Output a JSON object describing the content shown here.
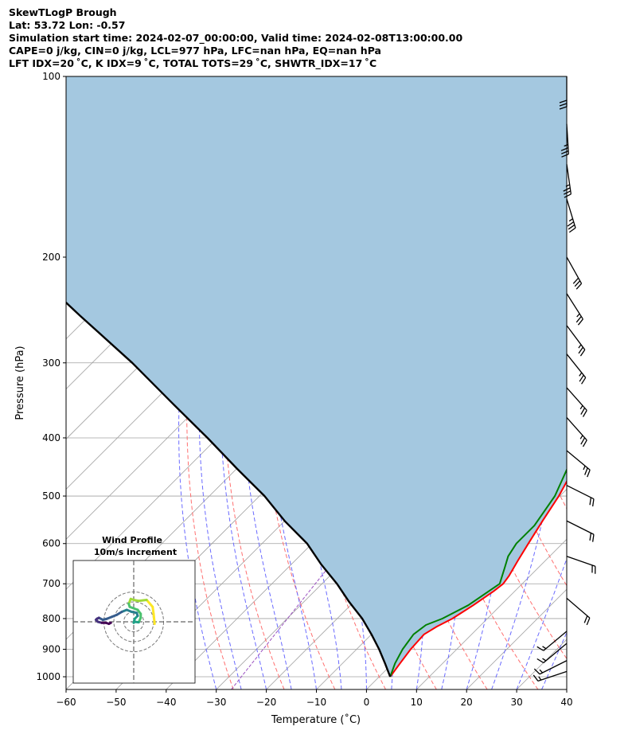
{
  "header": {
    "line1": "SkewTLogP Brough",
    "line2": "Lat: 53.72   Lon: -0.57",
    "line3": "Simulation start time: 2024-02-07_00:00:00, Valid time: 2024-02-08T13:00:00.00",
    "line4": "CAPE=0 j/kg, CIN=0 j/kg, LCL=977 hPa, LFC=nan hPa, EQ=nan hPa",
    "line5": "LFT IDX=20 ˚C, K IDX=9 ˚C, TOTAL TOTS=29 ˚C, SHWTR_IDX=17 ˚C"
  },
  "colors": {
    "temperature": "#ff0000",
    "dewpoint": "#008000",
    "parcel": "#000000",
    "cape_fill": "#a4c8e0",
    "dry_adiabat": "#ff6f6f",
    "moist_adiabat": "#6a6aff",
    "isotherm": "#a0a0a0",
    "mixing_ratio": "#9a50c0"
  },
  "chart_data": {
    "type": "line",
    "x": [
      -60,
      -50,
      -40,
      -30,
      -20,
      -10,
      0,
      10,
      20,
      30,
      40
    ],
    "xlabel": "Temperature (˚C)",
    "ylabel": "Pressure (hPa)",
    "xlim": [
      -60,
      40
    ],
    "ylim": [
      1050,
      100
    ],
    "y_scale": "log",
    "y_ticks": [
      1000,
      900,
      800,
      700,
      600,
      500,
      400,
      300,
      200,
      100
    ],
    "skew": "log-p skew-T",
    "grid": true,
    "series": [
      {
        "name": "temperature",
        "points": [
          [
            2.2,
            1000
          ],
          [
            1.5,
            950
          ],
          [
            0.8,
            900
          ],
          [
            0.5,
            850
          ],
          [
            1.5,
            825
          ],
          [
            3,
            800
          ],
          [
            4.5,
            760
          ],
          [
            5.8,
            720
          ],
          [
            6.2,
            700
          ],
          [
            5.8,
            680
          ],
          [
            4.5,
            640
          ],
          [
            3.2,
            600
          ],
          [
            1.5,
            550
          ],
          [
            -0.2,
            500
          ],
          [
            -2.7,
            450
          ],
          [
            -6,
            400
          ],
          [
            -10,
            350
          ],
          [
            -15,
            300
          ],
          [
            -20,
            260
          ],
          [
            -23.5,
            230
          ],
          [
            -24,
            220
          ],
          [
            -23.5,
            210
          ],
          [
            -23,
            200
          ],
          [
            -22.5,
            190
          ],
          [
            -21.5,
            180
          ],
          [
            -20.2,
            170
          ],
          [
            -19,
            160
          ],
          [
            -17.5,
            150
          ],
          [
            -15.5,
            140
          ],
          [
            -13.5,
            130
          ],
          [
            -11.5,
            120
          ],
          [
            -9.5,
            110
          ],
          [
            -8,
            100
          ]
        ]
      },
      {
        "name": "dewpoint",
        "points": [
          [
            2.2,
            1000
          ],
          [
            0.5,
            950
          ],
          [
            -0.8,
            900
          ],
          [
            -1.6,
            850
          ],
          [
            -1,
            820
          ],
          [
            1,
            800
          ],
          [
            3.5,
            760
          ],
          [
            5.5,
            700
          ],
          [
            3.4,
            660
          ],
          [
            1.7,
            630
          ],
          [
            0.8,
            600
          ],
          [
            0.8,
            560
          ],
          [
            -1,
            500
          ],
          [
            -4,
            450
          ],
          [
            -7.5,
            400
          ],
          [
            -12,
            350
          ],
          [
            -18,
            310
          ],
          [
            -19.7,
            300
          ],
          [
            -22,
            280
          ],
          [
            -24.5,
            260
          ],
          [
            -27.5,
            235
          ],
          [
            -29,
            220
          ],
          [
            -28.5,
            210
          ],
          [
            -27,
            200
          ],
          [
            -24,
            180
          ],
          [
            -23.5,
            160
          ],
          [
            -23,
            150
          ],
          [
            -22.5,
            140
          ],
          [
            -17,
            130
          ],
          [
            -13,
            120
          ],
          [
            -10,
            110
          ],
          [
            -7.5,
            100
          ]
        ]
      },
      {
        "name": "parcel",
        "points": [
          [
            2.2,
            1000
          ],
          [
            -1.5,
            950
          ],
          [
            -5.5,
            900
          ],
          [
            -10,
            850
          ],
          [
            -15,
            800
          ],
          [
            -21,
            750
          ],
          [
            -27,
            700
          ],
          [
            -34,
            650
          ],
          [
            -41,
            600
          ],
          [
            -50,
            550
          ],
          [
            -59,
            500
          ],
          [
            -70,
            450
          ],
          [
            -82,
            400
          ],
          [
            -96,
            350
          ],
          [
            -112,
            300
          ],
          [
            -132,
            250
          ],
          [
            -156,
            200
          ],
          [
            -175,
            170
          ],
          [
            -198,
            140
          ],
          [
            -214,
            120
          ],
          [
            -236,
            100
          ]
        ]
      }
    ]
  },
  "inset": {
    "title": "Wind Profile",
    "subtitle": "10m/s increment",
    "points": [
      [
        21,
        -2
      ],
      [
        20,
        8
      ],
      [
        19,
        15
      ],
      [
        13,
        22
      ],
      [
        5,
        21
      ],
      [
        0,
        22
      ],
      [
        -3,
        23
      ],
      [
        -5,
        18
      ],
      [
        -4,
        15
      ],
      [
        4,
        12
      ],
      [
        7,
        8
      ],
      [
        7,
        4
      ],
      [
        5,
        -0.5
      ],
      [
        1,
        0
      ],
      [
        0,
        -1
      ],
      [
        1,
        3
      ],
      [
        4,
        6
      ],
      [
        3,
        9
      ],
      [
        -2,
        10
      ],
      [
        -7,
        12
      ],
      [
        -12,
        10
      ],
      [
        -17,
        7
      ],
      [
        -22,
        5
      ],
      [
        -27,
        3
      ],
      [
        -31,
        2
      ],
      [
        -35,
        4
      ],
      [
        -37,
        3
      ],
      [
        -38,
        2
      ],
      [
        -36,
        0
      ],
      [
        -32,
        -1
      ],
      [
        -28,
        -1
      ],
      [
        -25,
        -2
      ],
      [
        -23,
        -1
      ]
    ]
  },
  "wind_barbs": [
    {
      "p": 100,
      "u": 0,
      "v": 30
    },
    {
      "p": 120,
      "u": -2,
      "v": 33
    },
    {
      "p": 140,
      "u": -5,
      "v": 35
    },
    {
      "p": 160,
      "u": -10,
      "v": 33
    },
    {
      "p": 200,
      "u": -14,
      "v": 25
    },
    {
      "p": 230,
      "u": -14,
      "v": 22
    },
    {
      "p": 260,
      "u": -15,
      "v": 20
    },
    {
      "p": 290,
      "u": -16,
      "v": 20
    },
    {
      "p": 330,
      "u": -16,
      "v": 18
    },
    {
      "p": 370,
      "u": -16,
      "v": 18
    },
    {
      "p": 420,
      "u": -18,
      "v": 15
    },
    {
      "p": 480,
      "u": -20,
      "v": 10
    },
    {
      "p": 550,
      "u": -20,
      "v": 10
    },
    {
      "p": 630,
      "u": -20,
      "v": 7
    },
    {
      "p": 740,
      "u": -14,
      "v": 12
    },
    {
      "p": 840,
      "u": 12,
      "v": 10
    },
    {
      "p": 880,
      "u": 12,
      "v": 10
    },
    {
      "p": 940,
      "u": 12,
      "v": 6
    },
    {
      "p": 980,
      "u": 12,
      "v": 4
    }
  ]
}
